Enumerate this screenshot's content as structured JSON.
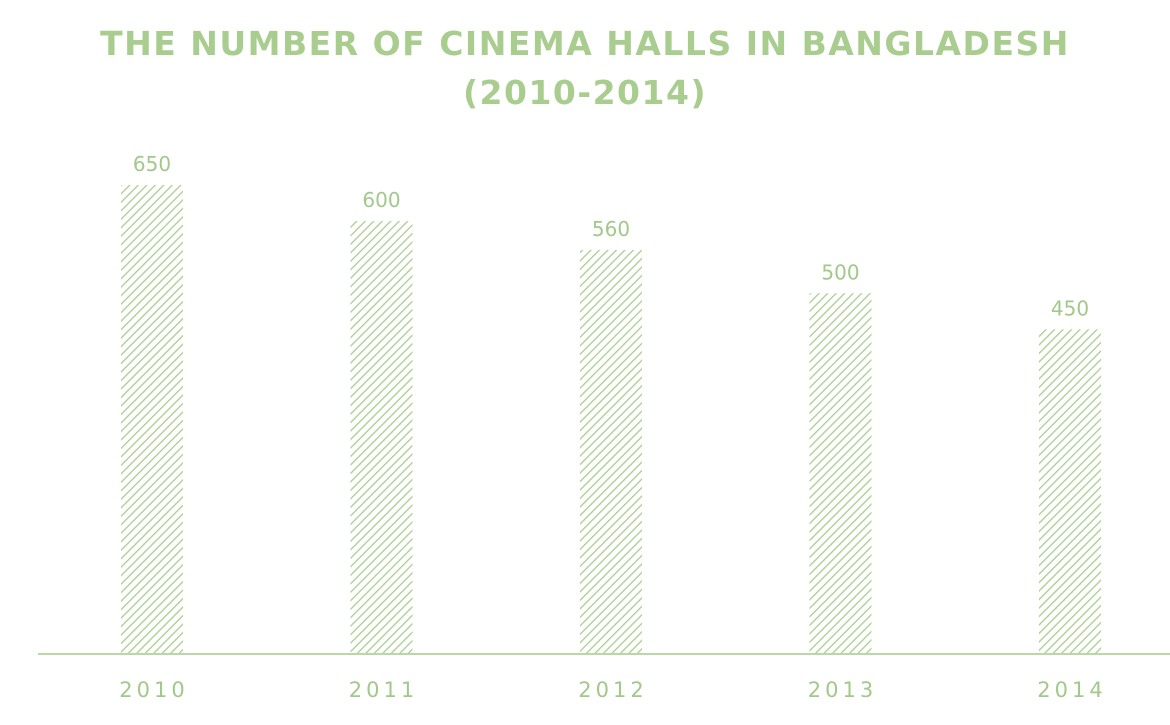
{
  "chart_data": {
    "type": "bar",
    "title": "THE NUMBER OF CINEMA HALLS IN BANGLADESH",
    "subtitle": "(2010-2014)",
    "categories": [
      "2010",
      "2011",
      "2012",
      "2013",
      "2014"
    ],
    "values": [
      650,
      600,
      560,
      500,
      450
    ],
    "xlabel": "",
    "ylabel": "",
    "ylim": [
      0,
      700
    ],
    "grid": false,
    "legend": "none",
    "data_labels": true,
    "colors": {
      "bar": "#a9cd8f",
      "text": "#a2c88a",
      "axis": "#b9d8a4"
    }
  }
}
